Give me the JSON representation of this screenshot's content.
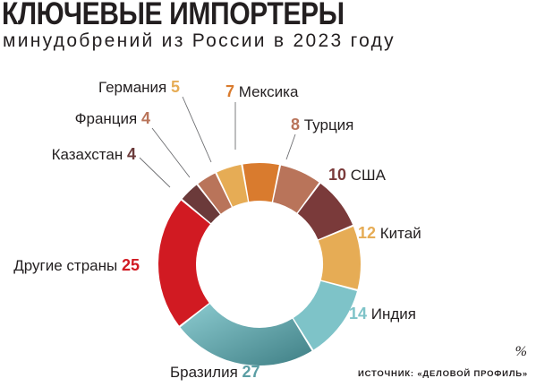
{
  "title": "КЛЮЧЕВЫЕ ИМПОРТЕРЫ",
  "subtitle": "минудобрений из России в 2023 году",
  "unit": "%",
  "source": "ИСТОЧНИК: «ДЕЛОВОЙ ПРОФИЛЬ»",
  "chart_data": {
    "type": "pie",
    "variant": "donut",
    "unit": "%",
    "slices": [
      {
        "label": "Мексика",
        "value": 7,
        "color": "#d97b2e"
      },
      {
        "label": "Турция",
        "value": 8,
        "color": "#b9745a"
      },
      {
        "label": "США",
        "value": 10,
        "color": "#7a3a3a"
      },
      {
        "label": "Китай",
        "value": 12,
        "color": "#e6ac55"
      },
      {
        "label": "Индия",
        "value": 14,
        "color": "#7ec3c8"
      },
      {
        "label": "Бразилия",
        "value": 27,
        "color": "#5b9ea4"
      },
      {
        "label": "Другие страны",
        "value": 25,
        "color": "#d11a22"
      },
      {
        "label": "Казахстан",
        "value": 4,
        "color": "#6b3a3a"
      },
      {
        "label": "Франция",
        "value": 4,
        "color": "#b9745a"
      },
      {
        "label": "Германия",
        "value": 5,
        "color": "#e6ac55"
      }
    ]
  }
}
